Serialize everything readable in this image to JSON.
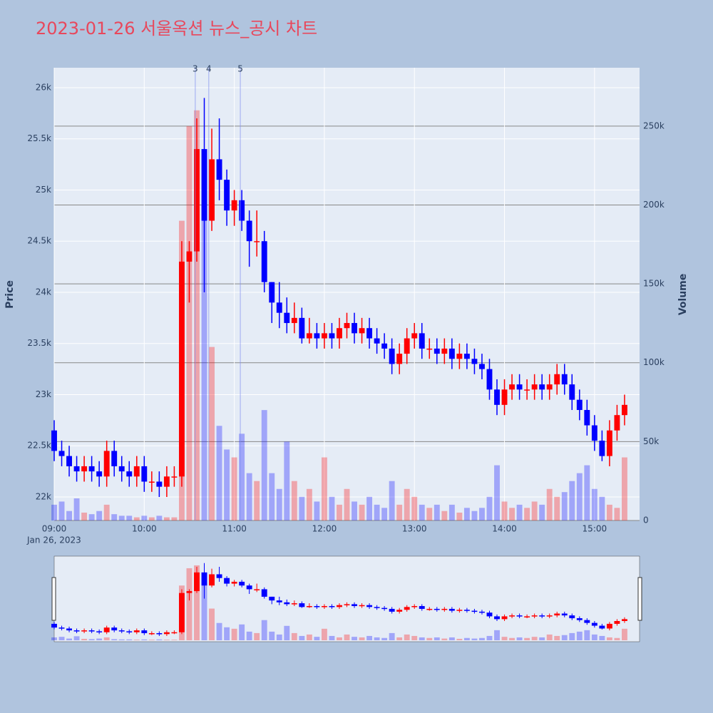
{
  "chart_data": {
    "type": "candlestick",
    "title": "2023-01-26 서울옥션 뉴스_공시 차트",
    "date_label": "Jan 26, 2023",
    "yaxis_title": "Price",
    "y2axis_title": "Volume",
    "up_color": "#ff0000",
    "down_color": "#0000ff",
    "xlim": [
      "09:00",
      "15:30"
    ],
    "xticks": [
      "09:00",
      "10:00",
      "11:00",
      "12:00",
      "13:00",
      "14:00",
      "15:00"
    ],
    "ylim": [
      21770,
      26195
    ],
    "yticks": [
      {
        "value": 22000,
        "label": "22k"
      },
      {
        "value": 22500,
        "label": "22.5k"
      },
      {
        "value": 23000,
        "label": "23k"
      },
      {
        "value": 23500,
        "label": "23.5k"
      },
      {
        "value": 24000,
        "label": "24k"
      },
      {
        "value": 24500,
        "label": "24.5k"
      },
      {
        "value": 25000,
        "label": "25k"
      },
      {
        "value": 25500,
        "label": "25.5k"
      },
      {
        "value": 26000,
        "label": "26k"
      }
    ],
    "y2lim": [
      0,
      287000
    ],
    "y2ticks": [
      0,
      {
        "value": 50000,
        "label": "50k"
      },
      {
        "value": 100000,
        "label": "100k"
      },
      {
        "value": 150000,
        "label": "150k"
      },
      {
        "value": 200000,
        "label": "200k"
      },
      {
        "value": 250000,
        "label": "250k"
      }
    ],
    "annotations": [
      {
        "x": "10:34",
        "text": "3"
      },
      {
        "x": "10:43",
        "text": "4"
      },
      {
        "x": "11:04",
        "text": "5"
      }
    ],
    "x": [
      "09:00",
      "09:05",
      "09:10",
      "09:15",
      "09:20",
      "09:25",
      "09:30",
      "09:35",
      "09:40",
      "09:45",
      "09:50",
      "09:55",
      "10:00",
      "10:05",
      "10:10",
      "10:15",
      "10:20",
      "10:25",
      "10:30",
      "10:35",
      "10:40",
      "10:45",
      "10:50",
      "10:55",
      "11:00",
      "11:05",
      "11:10",
      "11:15",
      "11:20",
      "11:25",
      "11:30",
      "11:35",
      "11:40",
      "11:45",
      "11:50",
      "11:55",
      "12:00",
      "12:05",
      "12:10",
      "12:15",
      "12:20",
      "12:25",
      "12:30",
      "12:35",
      "12:40",
      "12:45",
      "12:50",
      "12:55",
      "13:00",
      "13:05",
      "13:10",
      "13:15",
      "13:20",
      "13:25",
      "13:30",
      "13:35",
      "13:40",
      "13:45",
      "13:50",
      "13:55",
      "14:00",
      "14:05",
      "14:10",
      "14:15",
      "14:20",
      "14:25",
      "14:30",
      "14:35",
      "14:40",
      "14:45",
      "14:50",
      "14:55",
      "15:00",
      "15:05",
      "15:10",
      "15:15",
      "15:20"
    ],
    "open": [
      22650,
      22450,
      22400,
      22300,
      22250,
      22300,
      22250,
      22200,
      22450,
      22300,
      22250,
      22200,
      22300,
      22150,
      22150,
      22100,
      22200,
      22200,
      24300,
      24400,
      25400,
      24700,
      25300,
      25100,
      24800,
      24900,
      24700,
      24500,
      24500,
      24100,
      23900,
      23800,
      23700,
      23750,
      23550,
      23600,
      23550,
      23600,
      23550,
      23650,
      23700,
      23600,
      23650,
      23550,
      23500,
      23450,
      23300,
      23400,
      23550,
      23600,
      23450,
      23450,
      23400,
      23450,
      23350,
      23400,
      23350,
      23300,
      23250,
      23050,
      22900,
      23050,
      23100,
      23050,
      23050,
      23100,
      23050,
      23100,
      23200,
      23100,
      22950,
      22850,
      22700,
      22550,
      22400,
      22650,
      22800
    ],
    "high": [
      22750,
      22550,
      22500,
      22400,
      22400,
      22400,
      22350,
      22550,
      22550,
      22400,
      22350,
      22400,
      22400,
      22250,
      22250,
      22300,
      22300,
      24500,
      24500,
      25700,
      25900,
      25600,
      25700,
      25200,
      25000,
      25000,
      24800,
      24800,
      24600,
      24100,
      24100,
      23950,
      23900,
      23850,
      23750,
      23700,
      23700,
      23700,
      23750,
      23800,
      23800,
      23750,
      23750,
      23650,
      23600,
      23550,
      23500,
      23650,
      23700,
      23700,
      23550,
      23550,
      23550,
      23550,
      23500,
      23500,
      23450,
      23400,
      23350,
      23150,
      23150,
      23200,
      23200,
      23150,
      23200,
      23200,
      23200,
      23300,
      23300,
      23200,
      23050,
      22950,
      22800,
      22650,
      22750,
      22900,
      23000
    ],
    "low": [
      22350,
      22300,
      22200,
      22150,
      22150,
      22150,
      22100,
      22100,
      22200,
      22150,
      22100,
      22100,
      22050,
      22050,
      22000,
      22000,
      22100,
      22100,
      23900,
      24300,
      24000,
      24600,
      24900,
      24650,
      24650,
      24600,
      24250,
      24350,
      24000,
      23700,
      23650,
      23600,
      23600,
      23500,
      23500,
      23450,
      23450,
      23450,
      23450,
      23550,
      23500,
      23500,
      23450,
      23400,
      23350,
      23200,
      23200,
      23300,
      23450,
      23350,
      23350,
      23300,
      23300,
      23250,
      23250,
      23250,
      23200,
      23150,
      22950,
      22800,
      22800,
      22950,
      22950,
      22950,
      22950,
      22950,
      22950,
      23000,
      23000,
      22850,
      22750,
      22600,
      22450,
      22350,
      22300,
      22550,
      22700
    ],
    "close": [
      22450,
      22400,
      22300,
      22250,
      22300,
      22250,
      22200,
      22450,
      22300,
      22250,
      22200,
      22300,
      22150,
      22150,
      22100,
      22200,
      22200,
      24300,
      24400,
      25400,
      24700,
      25300,
      25100,
      24800,
      24900,
      24700,
      24500,
      24500,
      24100,
      23900,
      23800,
      23700,
      23750,
      23550,
      23600,
      23550,
      23600,
      23550,
      23650,
      23700,
      23600,
      23650,
      23550,
      23500,
      23450,
      23300,
      23400,
      23550,
      23600,
      23450,
      23450,
      23400,
      23450,
      23350,
      23400,
      23350,
      23300,
      23250,
      23050,
      22900,
      23050,
      23100,
      23050,
      23050,
      23100,
      23050,
      23100,
      23200,
      23100,
      22950,
      22850,
      22700,
      22550,
      22400,
      22650,
      22800,
      22900
    ],
    "volume": [
      10000,
      12000,
      6000,
      14000,
      5000,
      4000,
      6000,
      10000,
      4000,
      3000,
      3000,
      2000,
      3000,
      2000,
      3000,
      2000,
      2000,
      190000,
      250000,
      260000,
      200000,
      110000,
      60000,
      45000,
      40000,
      55000,
      30000,
      25000,
      70000,
      30000,
      20000,
      50000,
      25000,
      15000,
      20000,
      12000,
      40000,
      15000,
      10000,
      20000,
      12000,
      10000,
      15000,
      10000,
      8000,
      25000,
      10000,
      20000,
      15000,
      10000,
      8000,
      10000,
      6000,
      10000,
      5000,
      8000,
      6000,
      8000,
      15000,
      35000,
      12000,
      8000,
      10000,
      8000,
      12000,
      10000,
      20000,
      15000,
      18000,
      25000,
      30000,
      35000,
      20000,
      15000,
      10000,
      8000,
      40000
    ]
  }
}
